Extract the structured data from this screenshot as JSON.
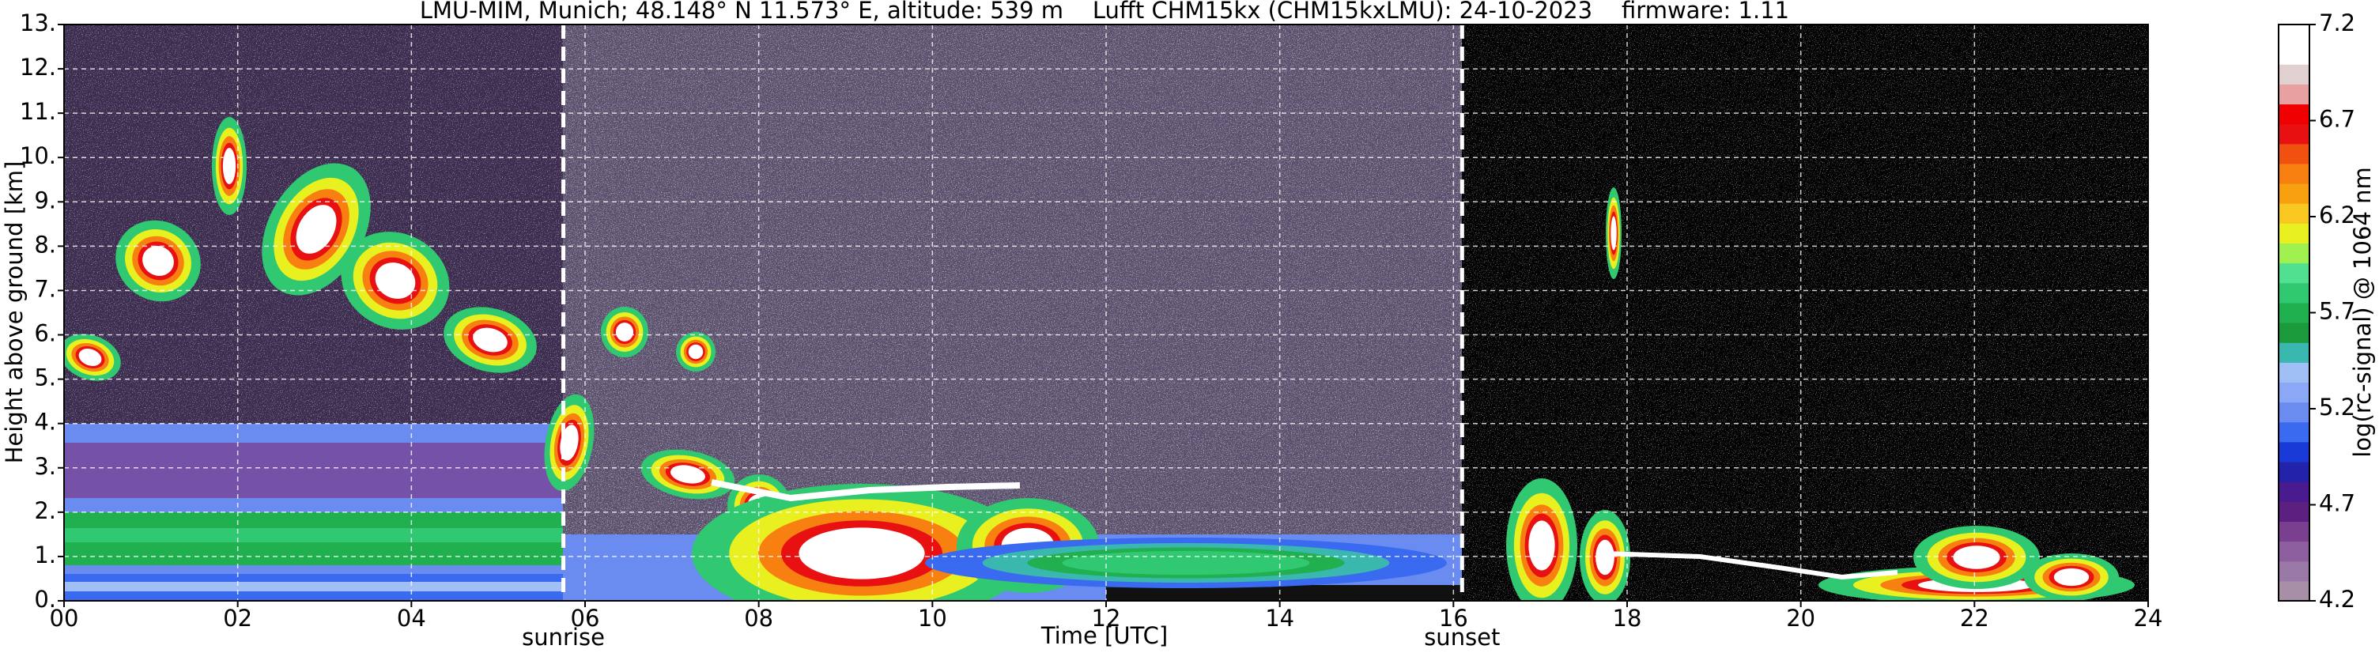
{
  "chart_data": {
    "type": "heatmap",
    "title": "LMU-MIM, Munich; 48.148° N 11.573° E, altitude: 539 m    Lufft CHM15kx (CHM15kxLMU): 24-10-2023    firmware: 1.11",
    "xlabel": "Time [UTC]",
    "ylabel": "Height above ground [km]",
    "xlim": [
      0,
      24
    ],
    "xticks": [
      {
        "value": 0,
        "label": "00"
      },
      {
        "value": 2,
        "label": "02"
      },
      {
        "value": 4,
        "label": "04"
      },
      {
        "value": 6,
        "label": "06"
      },
      {
        "value": 8,
        "label": "08"
      },
      10,
      12,
      14,
      16,
      18,
      20,
      22,
      24
    ],
    "ylim": [
      0,
      13
    ],
    "yticks": [
      {
        "value": 0,
        "label": "0."
      },
      {
        "value": 1,
        "label": "1."
      },
      {
        "value": 2,
        "label": "2."
      },
      {
        "value": 3,
        "label": "3."
      },
      {
        "value": 4,
        "label": "4."
      },
      {
        "value": 5,
        "label": "5."
      },
      {
        "value": 6,
        "label": "6."
      },
      {
        "value": 7,
        "label": "7."
      },
      {
        "value": 8,
        "label": "8."
      },
      {
        "value": 9,
        "label": "9."
      },
      {
        "value": 10,
        "label": "10."
      },
      {
        "value": 11,
        "label": "11."
      },
      {
        "value": 12,
        "label": "12."
      },
      {
        "value": 13,
        "label": "13."
      }
    ],
    "grid": true,
    "annotations": [
      {
        "label": "sunrise",
        "x": 5.75
      },
      {
        "label": "sunset",
        "x": 16.1
      }
    ],
    "colorbar": {
      "label": "log(rc-signal) @ 1064 nm",
      "lim": [
        4.2,
        7.2
      ],
      "ticks": [
        4.2,
        4.7,
        5.2,
        5.7,
        6.2,
        6.7,
        7.2
      ],
      "colors": [
        "#a88fa8",
        "#9a78a8",
        "#8e5f9e",
        "#7a3f8f",
        "#5b2080",
        "#4a1a90",
        "#2222aa",
        "#1a3ad8",
        "#3a6af0",
        "#6a8cf0",
        "#8aa8f5",
        "#a0bff5",
        "#3ab8b0",
        "#1a9a3a",
        "#20b050",
        "#30c870",
        "#50e090",
        "#a0f050",
        "#e8f020",
        "#f8c820",
        "#f8a010",
        "#f88010",
        "#f05010",
        "#e81010",
        "#f00000",
        "#e8a0a0",
        "#e0d0d0",
        "#ffffff",
        "#ffffff"
      ]
    }
  }
}
